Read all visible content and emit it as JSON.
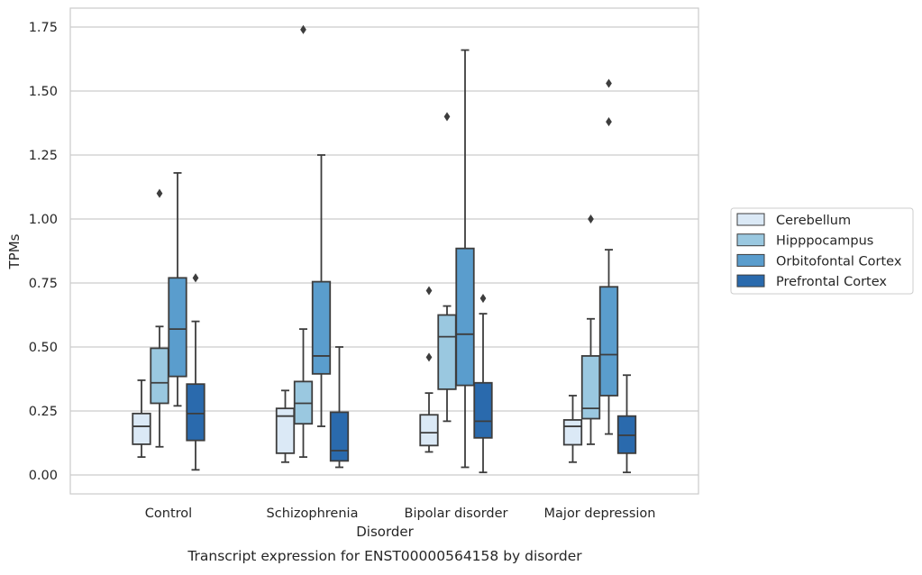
{
  "chart_data": {
    "type": "box",
    "title": "",
    "xlabel": "Disorder",
    "ylabel": "TPMs",
    "caption": "Transcript expression for ENST00000564158 by disorder",
    "ylim": [
      -0.075,
      1.83
    ],
    "yticks": [
      0.0,
      0.25,
      0.5,
      0.75,
      1.0,
      1.25,
      1.5,
      1.75
    ],
    "ytick_labels": [
      "0.00",
      "0.25",
      "0.50",
      "0.75",
      "1.00",
      "1.25",
      "1.50",
      "1.75"
    ],
    "grid": "horizontal",
    "legend_position": "right",
    "categories": [
      "Control",
      "Schizophrenia",
      "Bipolar disorder",
      "Major depression"
    ],
    "series": [
      {
        "name": "Cerebellum",
        "color": "#dbe9f6",
        "boxes": [
          {
            "whisker_low": 0.07,
            "q1": 0.12,
            "median": 0.19,
            "q3": 0.24,
            "whisker_high": 0.37,
            "outliers": []
          },
          {
            "whisker_low": 0.05,
            "q1": 0.085,
            "median": 0.23,
            "q3": 0.26,
            "whisker_high": 0.33,
            "outliers": []
          },
          {
            "whisker_low": 0.09,
            "q1": 0.115,
            "median": 0.165,
            "q3": 0.235,
            "whisker_high": 0.32,
            "outliers": [
              0.46,
              0.72
            ]
          },
          {
            "whisker_low": 0.05,
            "q1": 0.118,
            "median": 0.19,
            "q3": 0.215,
            "whisker_high": 0.31,
            "outliers": []
          }
        ]
      },
      {
        "name": "Hipppocampus",
        "color": "#9ac8e0",
        "boxes": [
          {
            "whisker_low": 0.11,
            "q1": 0.28,
            "median": 0.36,
            "q3": 0.495,
            "whisker_high": 0.58,
            "outliers": [
              1.1
            ]
          },
          {
            "whisker_low": 0.07,
            "q1": 0.2,
            "median": 0.28,
            "q3": 0.365,
            "whisker_high": 0.57,
            "outliers": [
              1.74
            ]
          },
          {
            "whisker_low": 0.21,
            "q1": 0.335,
            "median": 0.54,
            "q3": 0.625,
            "whisker_high": 0.66,
            "outliers": [
              1.4
            ]
          },
          {
            "whisker_low": 0.12,
            "q1": 0.22,
            "median": 0.26,
            "q3": 0.465,
            "whisker_high": 0.61,
            "outliers": [
              1.0
            ]
          }
        ]
      },
      {
        "name": "Orbitofontal Cortex",
        "color": "#5a9dcd",
        "boxes": [
          {
            "whisker_low": 0.27,
            "q1": 0.385,
            "median": 0.57,
            "q3": 0.77,
            "whisker_high": 1.18,
            "outliers": []
          },
          {
            "whisker_low": 0.19,
            "q1": 0.395,
            "median": 0.465,
            "q3": 0.755,
            "whisker_high": 1.25,
            "outliers": []
          },
          {
            "whisker_low": 0.03,
            "q1": 0.35,
            "median": 0.55,
            "q3": 0.885,
            "whisker_high": 1.66,
            "outliers": []
          },
          {
            "whisker_low": 0.16,
            "q1": 0.31,
            "median": 0.47,
            "q3": 0.735,
            "whisker_high": 0.88,
            "outliers": [
              1.38,
              1.53
            ]
          }
        ]
      },
      {
        "name": "Prefrontal Cortex",
        "color": "#2a6aad",
        "boxes": [
          {
            "whisker_low": 0.02,
            "q1": 0.135,
            "median": 0.24,
            "q3": 0.355,
            "whisker_high": 0.6,
            "outliers": [
              0.77
            ]
          },
          {
            "whisker_low": 0.03,
            "q1": 0.055,
            "median": 0.095,
            "q3": 0.245,
            "whisker_high": 0.5,
            "outliers": []
          },
          {
            "whisker_low": 0.01,
            "q1": 0.145,
            "median": 0.21,
            "q3": 0.36,
            "whisker_high": 0.63,
            "outliers": [
              0.69
            ]
          },
          {
            "whisker_low": 0.01,
            "q1": 0.085,
            "median": 0.155,
            "q3": 0.23,
            "whisker_high": 0.39,
            "outliers": []
          }
        ]
      }
    ]
  }
}
